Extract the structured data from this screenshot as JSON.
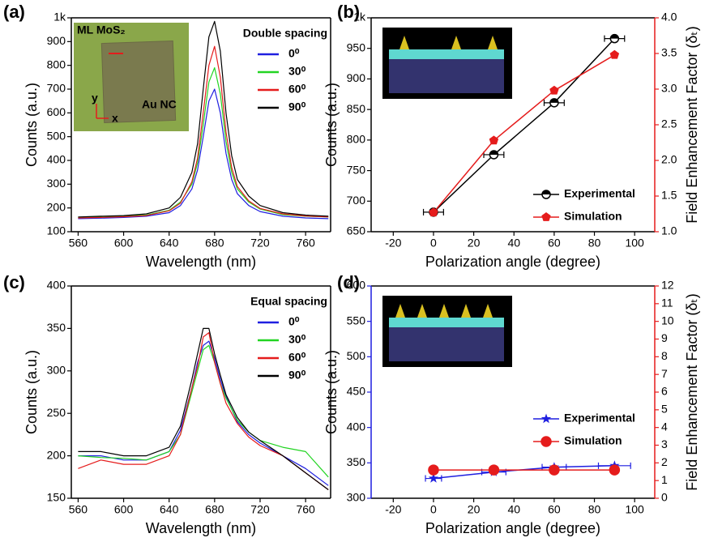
{
  "chart_data": [
    {
      "type": "line",
      "panel_label": "(a)",
      "xlabel": "Wavelength (nm)",
      "ylabel": "Counts (a.u.)",
      "legend_title": "Double spacing",
      "legend": "upper right",
      "annotations": [
        "ML MoS₂",
        "Au NC",
        "y",
        "x"
      ],
      "x": [
        560,
        580,
        600,
        620,
        640,
        650,
        660,
        665,
        670,
        675,
        680,
        685,
        690,
        695,
        700,
        710,
        720,
        740,
        760,
        780
      ],
      "series": [
        {
          "name": "0⁰",
          "color": "#1f1fe0",
          "values": [
            155,
            157,
            160,
            165,
            180,
            210,
            280,
            360,
            500,
            650,
            700,
            600,
            430,
            320,
            260,
            210,
            185,
            165,
            158,
            155
          ]
        },
        {
          "name": "30⁰",
          "color": "#22d422",
          "values": [
            160,
            162,
            165,
            170,
            190,
            225,
            300,
            390,
            550,
            730,
            790,
            680,
            480,
            350,
            280,
            225,
            195,
            172,
            165,
            162
          ]
        },
        {
          "name": "60⁰",
          "color": "#e51c1c",
          "values": [
            158,
            160,
            163,
            168,
            188,
            220,
            310,
            410,
            600,
            800,
            880,
            750,
            520,
            370,
            290,
            230,
            198,
            175,
            166,
            162
          ]
        },
        {
          "name": "90⁰",
          "color": "#000000",
          "values": [
            162,
            165,
            168,
            175,
            200,
            245,
            350,
            470,
            700,
            920,
            985,
            860,
            600,
            420,
            320,
            250,
            210,
            180,
            170,
            165
          ]
        }
      ],
      "xlim": [
        554,
        782
      ],
      "xticks": [
        560,
        600,
        640,
        680,
        720,
        760
      ],
      "ylim": [
        100,
        1000
      ],
      "yticks": [
        100,
        200,
        300,
        400,
        500,
        600,
        700,
        800,
        900,
        {
          "value": 1000,
          "label": "1k"
        }
      ]
    },
    {
      "type": "line",
      "panel_label": "(b)",
      "xlabel": "Polarization angle (degree)",
      "ylabel": "Counts (a.u.)",
      "y2label": "Field Enhancement Factor (δₜ)",
      "y2_color": "#e51c1c",
      "legend": "lower right",
      "x": [
        0,
        30,
        60,
        90
      ],
      "series": [
        {
          "name": "Experimental",
          "color": "#000000",
          "marker": "circle",
          "values": [
            682,
            776,
            861,
            966
          ],
          "x_errors": [
            5,
            5,
            5,
            5
          ]
        },
        {
          "name": "Simulation",
          "color": "#e51c1c",
          "marker": "pentagon",
          "axis": "y2",
          "values": [
            1.27,
            2.28,
            2.98,
            3.48
          ]
        }
      ],
      "xlim": [
        -31,
        110
      ],
      "xticks": [
        -20,
        0,
        20,
        40,
        60,
        80,
        100
      ],
      "ylim": [
        650,
        1000
      ],
      "yticks": [
        650,
        700,
        750,
        800,
        850,
        900,
        950,
        {
          "value": 1000,
          "label": "1k"
        }
      ],
      "y2lim": [
        1.0,
        4.0
      ],
      "y2ticks": [
        {
          "value": 1.0,
          "label": "1.0"
        },
        1.5,
        {
          "value": 2.0,
          "label": "2.0"
        },
        2.5,
        {
          "value": 3.0,
          "label": "3.0"
        },
        3.5,
        {
          "value": 4.0,
          "label": "4.0"
        }
      ]
    },
    {
      "type": "line",
      "panel_label": "(c)",
      "xlabel": "Wavelength (nm)",
      "ylabel": "Counts (a.u.)",
      "legend_title": "Equal spacing",
      "legend": "upper right",
      "x": [
        560,
        580,
        600,
        620,
        640,
        650,
        660,
        665,
        670,
        675,
        680,
        685,
        690,
        700,
        710,
        720,
        740,
        760,
        780
      ],
      "series": [
        {
          "name": "0⁰",
          "color": "#1f1fe0",
          "values": [
            200,
            200,
            195,
            195,
            205,
            230,
            280,
            310,
            330,
            335,
            315,
            290,
            270,
            240,
            225,
            215,
            200,
            185,
            165
          ]
        },
        {
          "name": "30⁰",
          "color": "#22d422",
          "values": [
            200,
            198,
            197,
            195,
            205,
            225,
            275,
            300,
            325,
            330,
            310,
            285,
            268,
            242,
            228,
            218,
            210,
            205,
            175
          ]
        },
        {
          "name": "60⁰",
          "color": "#e51c1c",
          "values": [
            185,
            195,
            190,
            190,
            200,
            225,
            280,
            305,
            340,
            345,
            310,
            285,
            262,
            238,
            222,
            212,
            200,
            180,
            160
          ]
        },
        {
          "name": "90⁰",
          "color": "#000000",
          "values": [
            205,
            205,
            200,
            200,
            210,
            235,
            290,
            320,
            350,
            350,
            320,
            295,
            272,
            245,
            228,
            218,
            200,
            180,
            160
          ]
        }
      ],
      "xlim": [
        554,
        782
      ],
      "xticks": [
        560,
        600,
        640,
        680,
        720,
        760
      ],
      "ylim": [
        150,
        400
      ],
      "yticks": [
        150,
        200,
        250,
        300,
        350,
        400
      ]
    },
    {
      "type": "line",
      "panel_label": "(d)",
      "xlabel": "Polarization angle (degree)",
      "ylabel": "Counts (a.u.)",
      "y_color": "#1f1fe0",
      "y2label": "Field Enhancement Factor (δₜ)",
      "y2_color": "#e51c1c",
      "legend": "lower right",
      "x": [
        0,
        30,
        60,
        90
      ],
      "series": [
        {
          "name": "Experimental",
          "color": "#1f1fe0",
          "marker": "star",
          "values": [
            328,
            337,
            344,
            346
          ],
          "x_errors": [
            4,
            6,
            6,
            8
          ]
        },
        {
          "name": "Simulation",
          "color": "#e51c1c",
          "marker": "circle",
          "axis": "y2",
          "values": [
            1.6,
            1.6,
            1.6,
            1.6
          ]
        }
      ],
      "xlim": [
        -31,
        110
      ],
      "xticks": [
        -20,
        0,
        20,
        40,
        60,
        80,
        100
      ],
      "ylim": [
        300,
        600
      ],
      "yticks": [
        300,
        350,
        400,
        450,
        500,
        550,
        600
      ],
      "y2lim": [
        0,
        12
      ],
      "y2ticks": [
        0,
        1,
        2,
        3,
        4,
        5,
        6,
        7,
        8,
        9,
        10,
        11,
        12
      ]
    }
  ]
}
